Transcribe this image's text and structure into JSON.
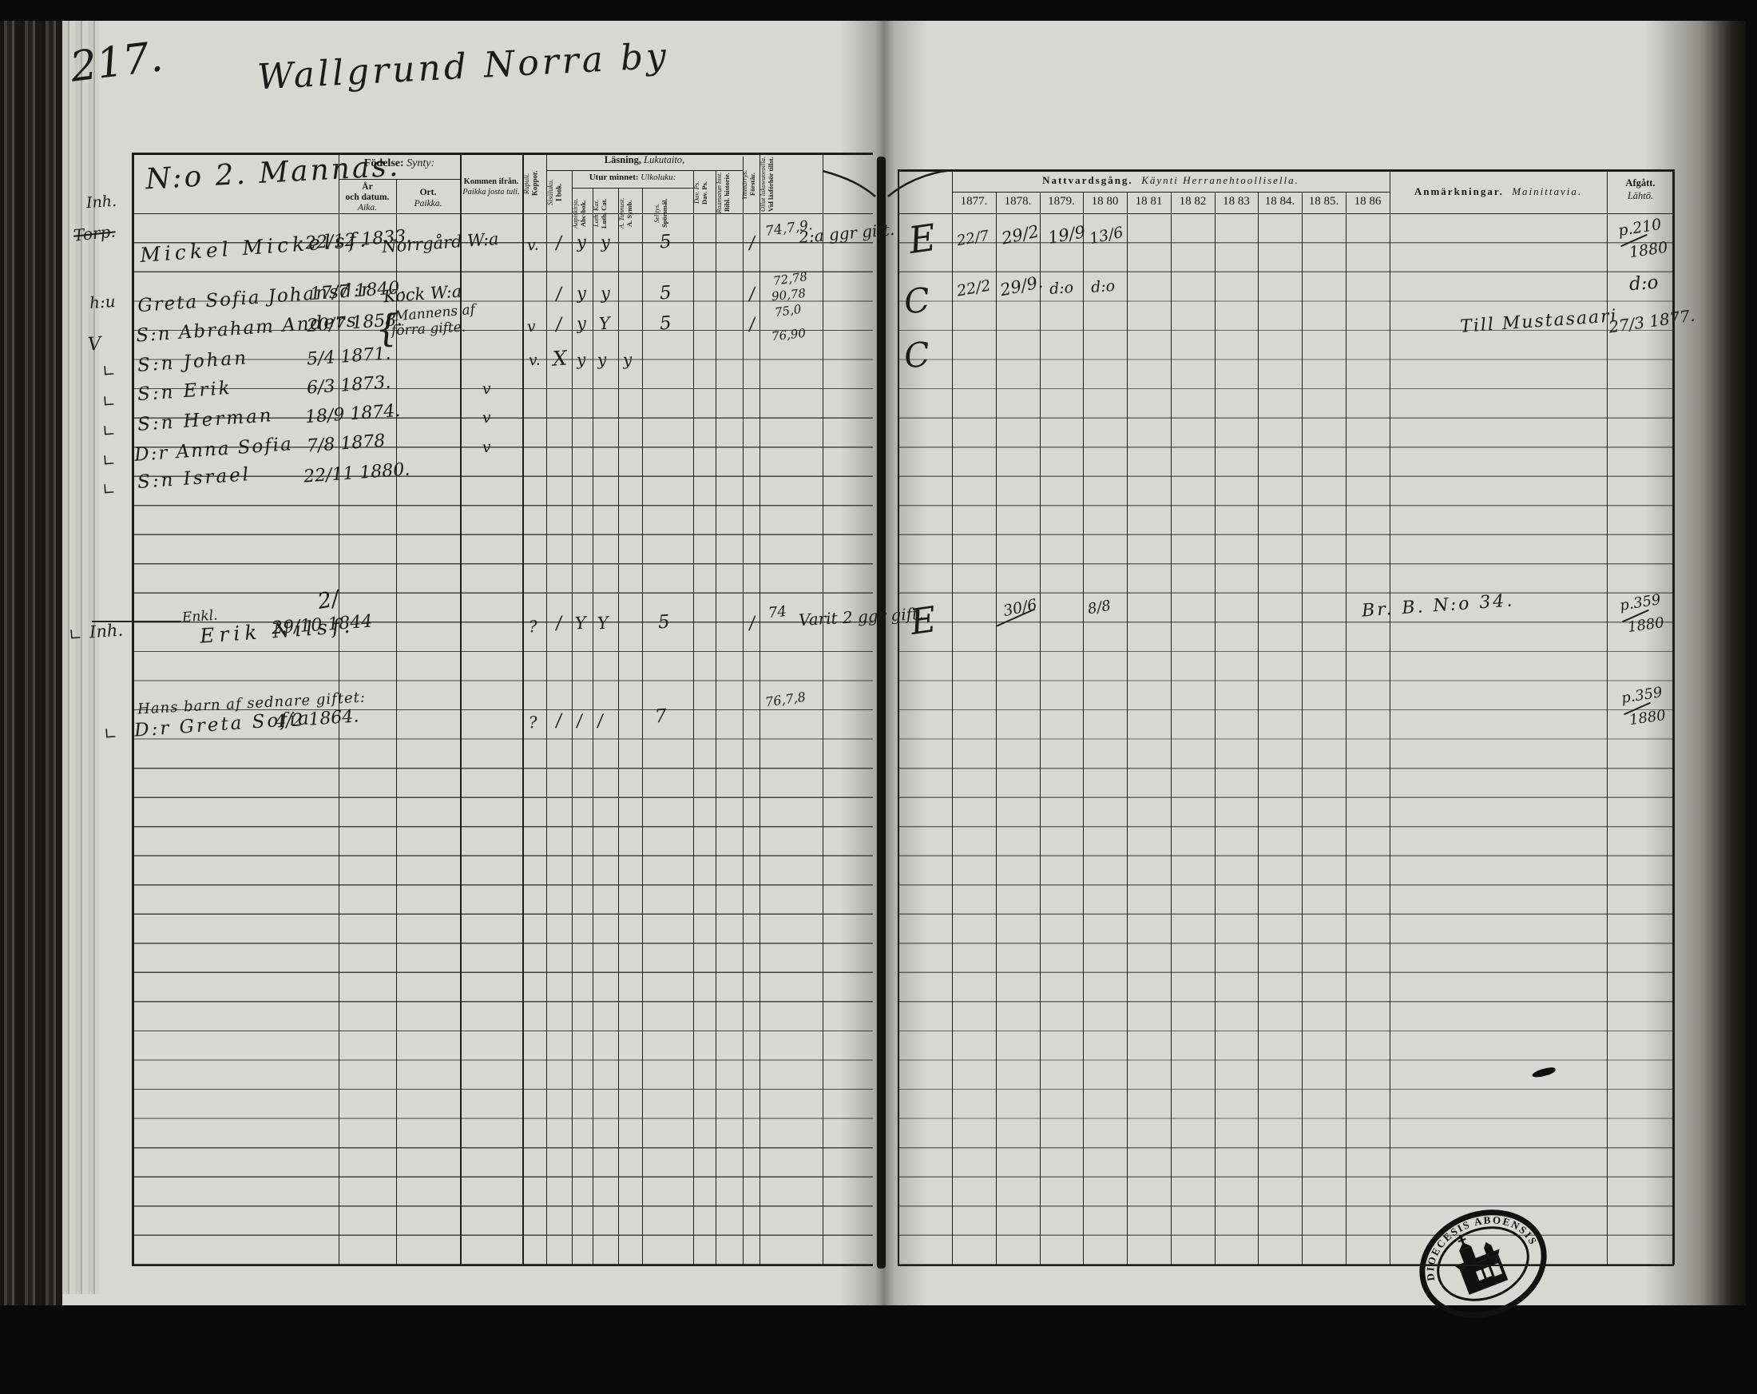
{
  "page": {
    "number": "217.",
    "title": "Wallgrund Norra by",
    "household": "N:o 2. Mannas."
  },
  "headers": {
    "fodelse_sv": "Födelse:",
    "fodelse_fi": "Synty:",
    "ar_sv": "År",
    "ar_sv2": "och datum.",
    "ar_fi": "Aika.",
    "ort_sv": "Ort.",
    "ort_fi": "Paikka.",
    "kommen_sv": "Kommen ifrån.",
    "kommen_fi": "Paikka josta tuli.",
    "koppor_sv": "Koppor.",
    "koppor_fi": "Rupuli.",
    "lasning_sv": "Läsning,",
    "lasning_fi": "Lukutaito,",
    "ibok_sv": "I bok.",
    "ibok_fi": "Sisäluku.",
    "utur_sv": "Utur minnet:",
    "utur_fi": "Ulkoluku:",
    "abc_sv": "Abc-bok.",
    "abc_fi": "Aapiskirja.",
    "cat_sv": "Luth. Cat.",
    "cat_fi": "Luth. Kat.",
    "symb_sv": "A. Symb.",
    "symb_fi": "A. Tunnust.",
    "sporsmal_sv": "Spörsmål.",
    "sporsmal_fi": "Selitys.",
    "davps_sv": "Dav. Ps.",
    "davps_fi": "Dav. Ps.",
    "bibl_sv": "Bibl. historie.",
    "bibl_fi": "Raamatun hist.",
    "forstar_sv": "Förstår.",
    "forstar_fi": "Ymmärrys.",
    "vidlas_sv": "Vid läsförhör tillst.",
    "vidlas_fi": "Ollut lukuwuoroilla.",
    "natt_sv": "Nattvardsgång.",
    "natt_fi": "Käynti Herranehtoollisella.",
    "years": [
      "1877.",
      "1878.",
      "1879.",
      "18 80",
      "18 81",
      "18 82",
      "18 83",
      "18 84.",
      "18 85.",
      "18 86"
    ],
    "anm_sv": "Anmärkningar.",
    "anm_fi": "Mainittavia.",
    "afgatt_sv": "Afgått.",
    "afgatt_fi": "Lähtö."
  },
  "entries": {
    "mickel": {
      "margin": "Inh.",
      "margin_struck": "Torp.",
      "name": "Mickel Mickelsf.",
      "born": "22/12 1833.",
      "from": "Norrgård W:a",
      "koppor": "v.",
      "ibok": "/",
      "abc": "y",
      "cat": "y",
      "sporsmal": "5",
      "forstar": "/",
      "attend": "74,7,9.",
      "note": "2:a ggr gift.",
      "comm": "E",
      "c1877": "22/7",
      "c1878": "29/2",
      "c1879": "19/9",
      "c1880": "13/6",
      "afgatt_top": "p.210",
      "afgatt_bot": "1880"
    },
    "greta": {
      "margin": "h:u",
      "name": "Greta Sofia Johansd:r",
      "born": "17/7 1840.",
      "from": "Kock W:a",
      "ibok": "/",
      "abc": "y",
      "cat": "y",
      "sporsmal": "5",
      "forstar": "/",
      "attend": "72,78",
      "attend2": "90,78",
      "comm": "C",
      "c1877": "22/2",
      "c1878": "29/9.",
      "c1879": "d:o",
      "c1880": "d:o",
      "afgatt": "d:o"
    },
    "abraham": {
      "margin": "V",
      "name": "S:n Abraham Anders",
      "born": "20/7 1858.",
      "brace": "{",
      "from_note1": "Mannens af",
      "from_note2": "förra gifte.",
      "koppor": "v",
      "ibok": "/",
      "abc": "y",
      "cat": "Y",
      "sporsmal": "5",
      "forstar": "/",
      "attend": "75,0",
      "attend2": "76,90",
      "comm": "C",
      "anm": "Till Mustasaari",
      "afgatt": "27/3 1877."
    },
    "johan": {
      "check": "∟",
      "name": "S:n Johan",
      "born": "5/4 1871.",
      "koppor": "v.",
      "ibok": "X",
      "abc": "y",
      "cat": "y",
      "symb": "y"
    },
    "erik": {
      "check": "∟",
      "name": "S:n Erik",
      "born": "6/3 1873.",
      "koppor": "v"
    },
    "herman": {
      "check": "∟",
      "name": "S:n Herman",
      "born": "18/9 1874.",
      "koppor": "v"
    },
    "annasofia": {
      "check": "∟",
      "name": "D:r Anna Sofia",
      "born": "7/8 1878",
      "koppor": "v"
    },
    "israel": {
      "check": "∟",
      "name": "S:n Israel",
      "born": "22/11 1880."
    },
    "eriknilsf": {
      "check": "∟",
      "margin": "Inh.",
      "title": "Enkl.",
      "name": "Erik Nilsf.",
      "born": "29/10 1844",
      "corr": "2/",
      "koppor": "?",
      "ibok": "/",
      "abc": "Y",
      "cat": "Y",
      "sporsmal": "5",
      "forstar": "/",
      "attend": "74",
      "note": "Varit 2 ggr gift.",
      "comm": "E",
      "c1878": "30/6",
      "c1880": "8/8",
      "anm": "Br. B. N:o 34.",
      "afgatt_top": "p.359",
      "afgatt_bot": "1880"
    },
    "hansbarn": {
      "heading": "Hans barn af sednare giftet:"
    },
    "gretasofia2": {
      "check": "∟",
      "name": "D:r Greta Sofia",
      "born": "4/2 1864.",
      "koppor": "?",
      "ibok": "/",
      "abc": "/",
      "cat": "/",
      "sporsmal": "7",
      "attend": "76,7,8",
      "afgatt_top": "p.359",
      "afgatt_bot": "1880"
    }
  },
  "stamp": {
    "text": "DIOECESIS ABOENSIS"
  }
}
